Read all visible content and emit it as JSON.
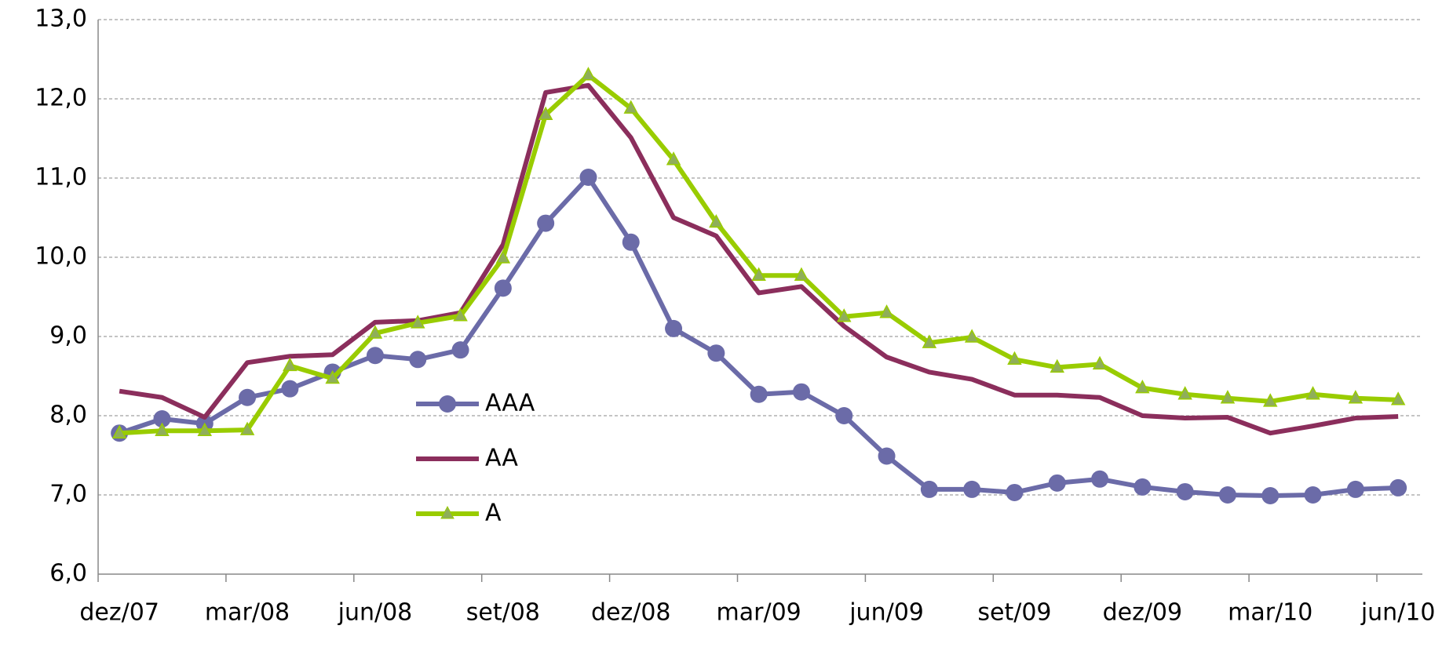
{
  "chart_data": {
    "type": "line",
    "categories": [
      "dez/07",
      null,
      null,
      "mar/08",
      null,
      null,
      "jun/08",
      null,
      null,
      "set/08",
      null,
      null,
      "dez/08",
      null,
      null,
      "mar/09",
      null,
      null,
      "jun/09",
      null,
      null,
      "set/09",
      null,
      null,
      "dez/09",
      null,
      null,
      "mar/10",
      null,
      null,
      "jun/10"
    ],
    "series": [
      {
        "name": "AAA",
        "color": "#6b6ba8",
        "marker": "circle",
        "values": [
          7.78,
          7.96,
          7.9,
          8.23,
          8.34,
          8.55,
          8.76,
          8.71,
          8.83,
          9.61,
          10.43,
          11.01,
          10.19,
          9.1,
          8.79,
          8.27,
          8.3,
          8.0,
          7.49,
          7.07,
          7.07,
          7.03,
          7.15,
          7.2,
          7.1,
          7.04,
          7.0,
          6.99,
          7.0,
          7.07,
          7.09
        ]
      },
      {
        "name": "AA",
        "color": "#8b2e5c",
        "marker": "none",
        "values": [
          8.31,
          8.23,
          7.98,
          8.67,
          8.75,
          8.77,
          9.18,
          9.2,
          9.3,
          10.16,
          12.08,
          12.17,
          11.51,
          10.5,
          10.27,
          9.55,
          9.63,
          9.13,
          8.74,
          8.55,
          8.46,
          8.26,
          8.26,
          8.23,
          8.0,
          7.97,
          7.98,
          7.78,
          7.87,
          7.97,
          7.99
        ]
      },
      {
        "name": "A",
        "color": "#99cc00",
        "marker": "triangle",
        "values": [
          7.78,
          7.81,
          7.81,
          7.82,
          8.63,
          8.47,
          9.04,
          9.17,
          9.26,
          9.99,
          11.8,
          12.3,
          11.88,
          11.23,
          10.44,
          9.77,
          9.77,
          9.25,
          9.3,
          8.92,
          8.99,
          8.71,
          8.61,
          8.65,
          8.35,
          8.27,
          8.22,
          8.18,
          8.27,
          8.22,
          8.2
        ]
      }
    ],
    "ylim": [
      6,
      13
    ],
    "yticks": [
      {
        "value": 6,
        "label": "6,0"
      },
      {
        "value": 7,
        "label": "7,0"
      },
      {
        "value": 8,
        "label": "8,0"
      },
      {
        "value": 9,
        "label": "9,0"
      },
      {
        "value": 10,
        "label": "10,0"
      },
      {
        "value": 11,
        "label": "11,0"
      },
      {
        "value": 12,
        "label": "12,0"
      },
      {
        "value": 13,
        "label": "13,0"
      }
    ],
    "grid": true,
    "legend": "left"
  }
}
